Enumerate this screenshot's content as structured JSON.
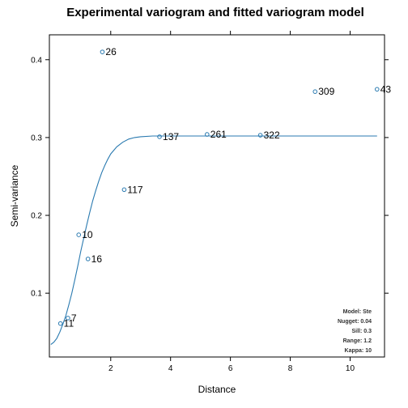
{
  "chart_data": {
    "type": "scatter",
    "title": "Experimental variogram and fitted variogram model",
    "xlabel": "Distance",
    "ylabel": "Semi-variance",
    "xlim": [
      -0.05,
      11.15
    ],
    "ylim": [
      0.018,
      0.432
    ],
    "x_ticks": [
      2,
      4,
      6,
      8,
      10
    ],
    "y_ticks": [
      0.1,
      0.2,
      0.3,
      0.4
    ],
    "x_tick_labels": [
      "2",
      "4",
      "6",
      "8",
      "10"
    ],
    "y_tick_labels": [
      "0.1",
      "0.2",
      "0.3",
      "0.4"
    ],
    "grid": false,
    "points": [
      {
        "x": 0.32,
        "y": 0.061,
        "label": "11"
      },
      {
        "x": 0.57,
        "y": 0.068,
        "label": "7"
      },
      {
        "x": 0.93,
        "y": 0.175,
        "label": "10"
      },
      {
        "x": 1.24,
        "y": 0.144,
        "label": "16"
      },
      {
        "x": 1.72,
        "y": 0.41,
        "label": "26"
      },
      {
        "x": 2.45,
        "y": 0.233,
        "label": "117"
      },
      {
        "x": 3.63,
        "y": 0.301,
        "label": "137"
      },
      {
        "x": 5.22,
        "y": 0.304,
        "label": "261"
      },
      {
        "x": 7.0,
        "y": 0.303,
        "label": "322"
      },
      {
        "x": 8.83,
        "y": 0.359,
        "label": "309"
      },
      {
        "x": 10.9,
        "y": 0.362,
        "label": "43"
      }
    ],
    "model": {
      "name": "Ste",
      "nugget": 0.04,
      "sill": 0.3,
      "range": 1.2,
      "kappa": 10,
      "x_start": 0,
      "x_end": 10.9,
      "curve": [
        [
          0.0,
          0.034
        ],
        [
          0.1,
          0.037
        ],
        [
          0.2,
          0.042
        ],
        [
          0.3,
          0.05
        ],
        [
          0.4,
          0.06
        ],
        [
          0.5,
          0.071
        ],
        [
          0.6,
          0.085
        ],
        [
          0.7,
          0.1
        ],
        [
          0.8,
          0.117
        ],
        [
          0.9,
          0.135
        ],
        [
          1.0,
          0.154
        ],
        [
          1.1,
          0.171
        ],
        [
          1.2,
          0.188
        ],
        [
          1.3,
          0.204
        ],
        [
          1.4,
          0.219
        ],
        [
          1.5,
          0.232
        ],
        [
          1.6,
          0.244
        ],
        [
          1.7,
          0.255
        ],
        [
          1.8,
          0.264
        ],
        [
          1.9,
          0.272
        ],
        [
          2.0,
          0.279
        ],
        [
          2.2,
          0.288
        ],
        [
          2.4,
          0.294
        ],
        [
          2.6,
          0.298
        ],
        [
          2.8,
          0.3
        ],
        [
          3.0,
          0.301
        ],
        [
          3.4,
          0.302
        ],
        [
          4.0,
          0.302
        ],
        [
          6.0,
          0.302
        ],
        [
          8.0,
          0.302
        ],
        [
          10.0,
          0.302
        ],
        [
          10.9,
          0.302
        ]
      ]
    },
    "model_info_lines": [
      "Model: Ste",
      "Nugget: 0.04",
      "Sill: 0.3",
      "Range: 1.2",
      "Kappa: 10"
    ],
    "colors": {
      "curve": "#2a7ab0",
      "points": "#2a7ab0",
      "axes": "#000000"
    }
  }
}
